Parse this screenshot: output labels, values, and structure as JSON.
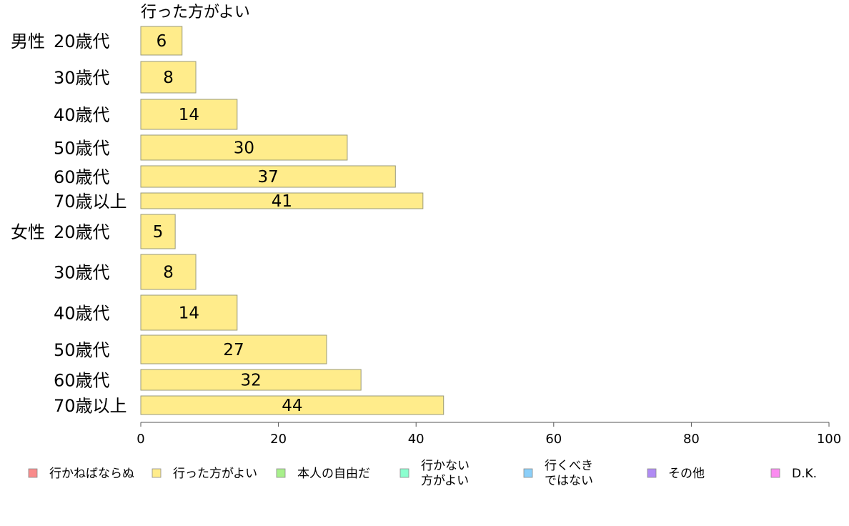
{
  "chart_data": {
    "type": "bar",
    "orientation": "horizontal",
    "series_title": "行った方がよい",
    "groups": [
      {
        "label": "男性",
        "categories": [
          "20歳代",
          "30歳代",
          "40歳代",
          "50歳代",
          "60歳代",
          "70歳以上"
        ],
        "values": [
          6,
          8,
          14,
          30,
          37,
          41
        ]
      },
      {
        "label": "女性",
        "categories": [
          "20歳代",
          "30歳代",
          "40歳代",
          "50歳代",
          "60歳代",
          "70歳以上"
        ],
        "values": [
          5,
          8,
          14,
          27,
          32,
          44
        ]
      }
    ],
    "series": [
      {
        "name": "行かねばならぬ",
        "color": "#f98b8b"
      },
      {
        "name": "行った方がよい",
        "color": "#ffec8b"
      },
      {
        "name": "本人の自由だ",
        "color": "#a8f08b"
      },
      {
        "name": "行かない\n方がよい",
        "color": "#8bffcf"
      },
      {
        "name": "行くべき\nではない",
        "color": "#8bcff9"
      },
      {
        "name": "その他",
        "color": "#b08bf4"
      },
      {
        "name": "D.K.",
        "color": "#fb8bf0"
      }
    ],
    "visible_series": "行った方がよい",
    "xlim": [
      0,
      100
    ],
    "xticks": [
      0,
      20,
      40,
      60,
      80,
      100
    ],
    "grid": false,
    "legend_position": "bottom"
  }
}
